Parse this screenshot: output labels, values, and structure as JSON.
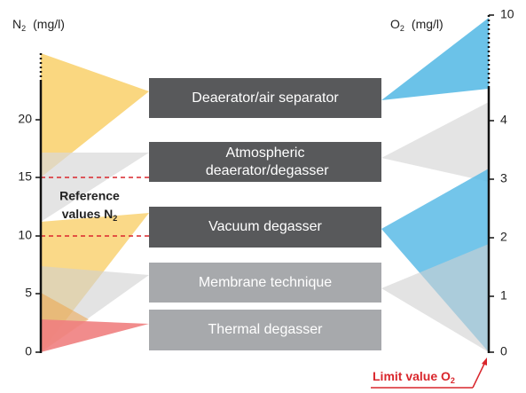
{
  "left_axis": {
    "symbol": "N",
    "sub": "2",
    "unit": "(mg/l)",
    "ticks": [
      0,
      5,
      10,
      15,
      20
    ]
  },
  "right_axis": {
    "symbol": "O",
    "sub": "2",
    "unit": "(mg/l)",
    "ticks": [
      0,
      1,
      2,
      3,
      4,
      10
    ]
  },
  "methods": [
    "Deaerator/air separator",
    "Atmospheric deaerator/degasser",
    "Vacuum degasser",
    "Membrane technique",
    "Thermal degasser"
  ],
  "reference": {
    "line1": "Reference",
    "line2": "values N",
    "sub": "2"
  },
  "limit": {
    "text": "Limit value O",
    "sub": "2"
  }
}
